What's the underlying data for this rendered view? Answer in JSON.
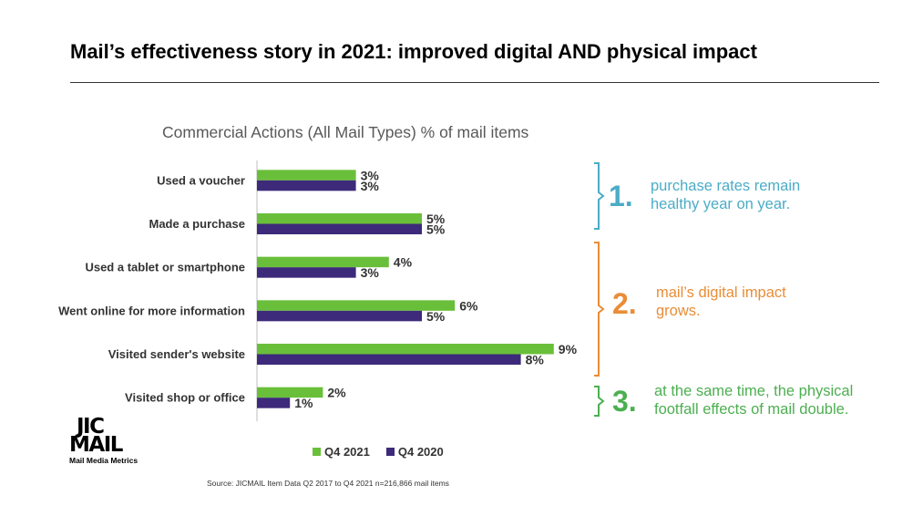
{
  "title": "Mail’s effectiveness story in 2021: improved digital AND physical impact",
  "chart_data": {
    "type": "bar",
    "orientation": "horizontal",
    "title": "Commercial Actions (All Mail Types) % of mail items",
    "categories": [
      "Used a voucher",
      "Made a purchase",
      "Used a tablet or smartphone",
      "Went online for more information",
      "Visited sender's website",
      "Visited shop or office"
    ],
    "series": [
      {
        "name": "Q4 2021",
        "color": "#6abf3a",
        "values": [
          3,
          5,
          4,
          6,
          9,
          2
        ],
        "labels": [
          "3%",
          "5%",
          "4%",
          "6%",
          "9%",
          "2%"
        ]
      },
      {
        "name": "Q4 2020",
        "color": "#3d2a7a",
        "values": [
          3,
          5,
          3,
          5,
          8,
          1
        ],
        "labels": [
          "3%",
          "5%",
          "3%",
          "5%",
          "8%",
          "1%"
        ]
      }
    ],
    "unit": "%",
    "legend_position": "bottom",
    "grid": false
  },
  "callouts": [
    {
      "number": "1.",
      "text_lines": [
        "purchase rates remain",
        "healthy year on year."
      ],
      "color": "#4bacc6"
    },
    {
      "number": "2.",
      "text_lines": [
        "mail’s digital impact",
        "grows."
      ],
      "color": "#e98d36"
    },
    {
      "number": "3.",
      "text_lines": [
        "at the same time, the physical",
        "footfall effects of mail double."
      ],
      "color": "#4caf50"
    }
  ],
  "logo": {
    "line1": "JIC",
    "line2": "MAIL",
    "tagline": "Mail Media Metrics"
  },
  "source": "Source: JICMAIL Item Data Q2 2017 to Q4 2021 n=216,866 mail items"
}
